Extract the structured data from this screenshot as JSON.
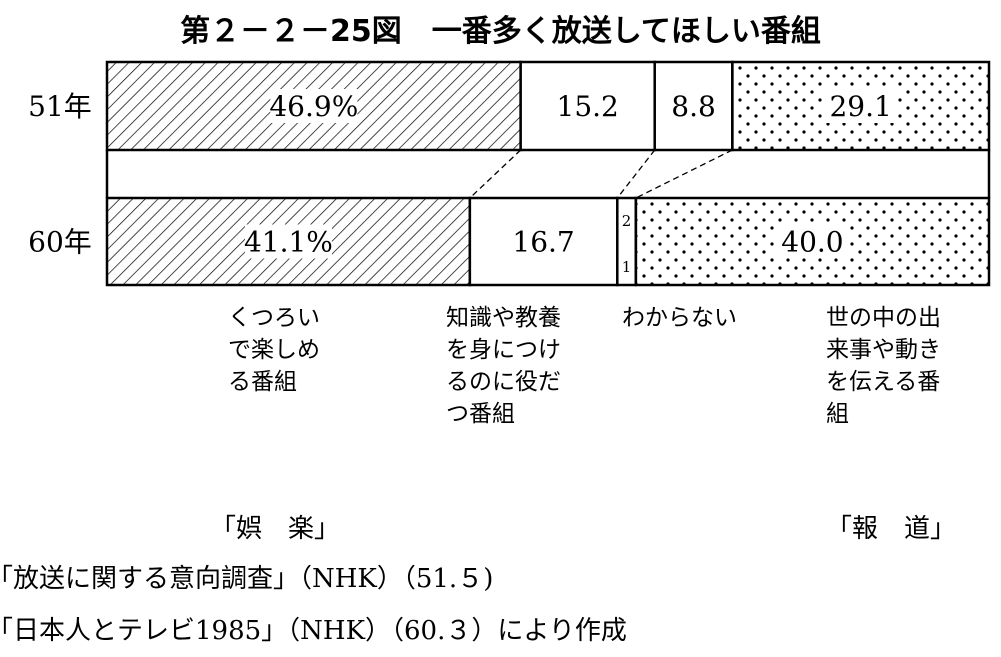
{
  "title": "第２－２－25図　一番多く放送してほしい番組",
  "chart_data": {
    "type": "bar",
    "stacked": true,
    "orientation": "horizontal",
    "unit": "%",
    "categories": [
      "51年",
      "60年"
    ],
    "series": [
      {
        "name": "くつろいで楽しめる番組",
        "pattern": "hatch",
        "values": [
          46.9,
          41.1
        ],
        "labels": [
          "46.9%",
          "41.1%"
        ]
      },
      {
        "name": "知識や教養を身につけるのに役だつ番組",
        "pattern": "blank",
        "values": [
          15.2,
          16.7
        ],
        "labels": [
          "15.2",
          "16.7"
        ]
      },
      {
        "name": "わからない",
        "pattern": "blank",
        "values": [
          8.8,
          2.1
        ],
        "labels": [
          "8.8",
          "2"
        ],
        "sublabels": [
          "",
          "1"
        ]
      },
      {
        "name": "世の中の出来事や動きを伝える番組",
        "pattern": "dots",
        "values": [
          29.1,
          40.0
        ],
        "labels": [
          "29.1",
          "40.0"
        ]
      }
    ],
    "legend": [
      "くつろい\nで楽しめ\nる番組",
      "知識や教養\nを身につけ\nるのに役だ\nつ番組",
      "わからない",
      "世の中の出\n来事や動き\nを伝える番\n組"
    ],
    "groups": [
      "「娯　楽」",
      "「報　道」"
    ]
  },
  "sources": [
    "｢放送に関する意向調査」（NHK）（51.５)",
    "｢日本人とテレビ1985」（NHK）（60.３）により作成"
  ]
}
